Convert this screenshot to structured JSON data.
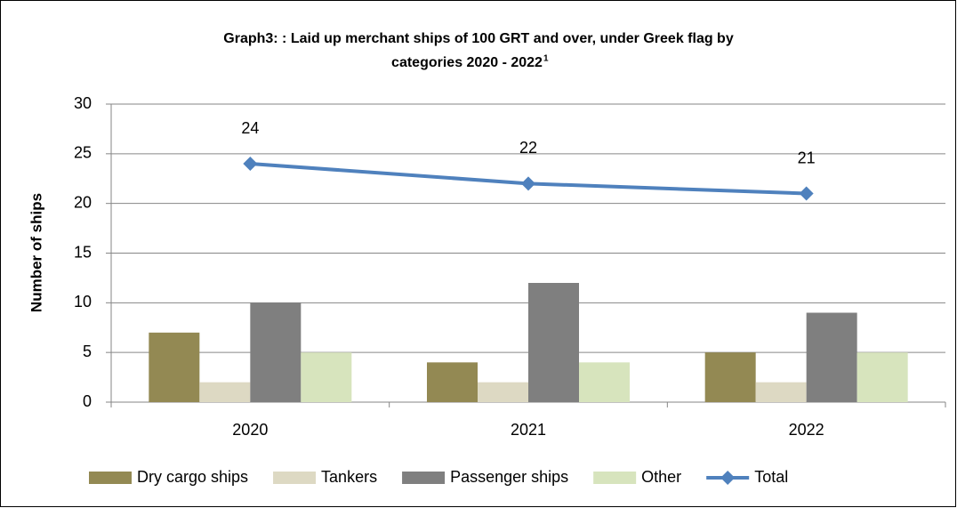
{
  "chart_data": {
    "type": "bar",
    "title": [
      "Graph3: : Laid up merchant ships of 100 GRT and over, under Greek flag by",
      "categories  2020 - 2022"
    ],
    "title_superscript": "1",
    "y_label": "Number of ships",
    "categories": [
      "2020",
      "2021",
      "2022"
    ],
    "series": [
      {
        "name": "Dry cargo ships",
        "color": "#938953",
        "values": [
          7,
          4,
          5
        ]
      },
      {
        "name": "Tankers",
        "color": "#ddd9c3",
        "values": [
          2,
          2,
          2
        ]
      },
      {
        "name": "Passenger ships",
        "color": "#7f7f7f",
        "values": [
          10,
          12,
          9
        ]
      },
      {
        "name": "Other",
        "color": "#d7e4bd",
        "values": [
          5,
          4,
          5
        ]
      },
      {
        "name": "Total",
        "color": "#4f81bd",
        "type": "line",
        "values": [
          24,
          22,
          21
        ]
      }
    ],
    "ylim": [
      0,
      30
    ],
    "yticks": [
      0,
      5,
      10,
      15,
      20,
      25,
      30
    ],
    "grid": true,
    "legend": "bottom"
  }
}
